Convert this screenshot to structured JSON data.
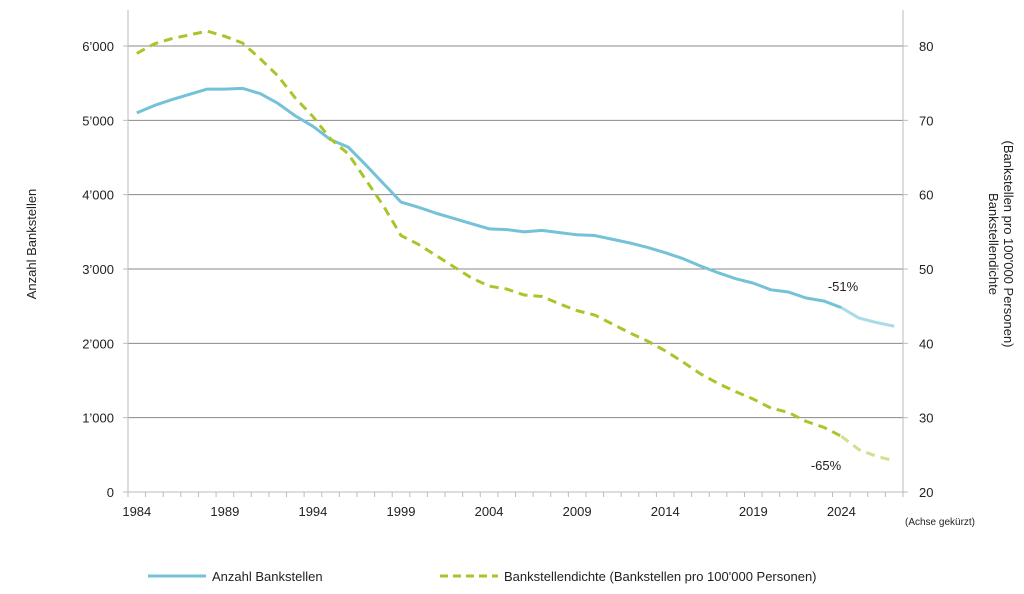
{
  "chart_data": {
    "type": "line",
    "title": "",
    "xlabel": "",
    "ylabel": "Anzahl Bankstellen",
    "y2label_line1": "Bankstellendichte",
    "y2label_line2": "(Bankstellen pro 100'000 Personen)",
    "axis_note": "(Achse gekürzt)",
    "x": [
      1984,
      1985,
      1986,
      1987,
      1988,
      1989,
      1990,
      1991,
      1992,
      1993,
      1994,
      1995,
      1996,
      1997,
      1998,
      1999,
      2000,
      2001,
      2002,
      2003,
      2004,
      2005,
      2006,
      2007,
      2008,
      2009,
      2010,
      2011,
      2012,
      2013,
      2014,
      2015,
      2016,
      2017,
      2018,
      2019,
      2020,
      2021,
      2022,
      2023,
      2024,
      2025,
      2026,
      2027
    ],
    "x_tick_labels": [
      "1984",
      "1989",
      "1994",
      "1999",
      "2004",
      "2009",
      "2014",
      "2019",
      "2024"
    ],
    "y_ticks": [
      "0",
      "1’000",
      "2’000",
      "3’000",
      "4’000",
      "5’000",
      "6’000"
    ],
    "y2_ticks": [
      "20",
      "30",
      "40",
      "50",
      "60",
      "70",
      "80"
    ],
    "ylim": [
      0,
      6000
    ],
    "y2lim": [
      20,
      80
    ],
    "grid": true,
    "legend_position": "bottom",
    "projection_from": 2024,
    "series": [
      {
        "name": "Anzahl Bankstellen",
        "axis": "left",
        "color": "#74c2d8",
        "projection_color": "#a9dbe8",
        "style": "solid",
        "values": [
          5100,
          5200,
          5280,
          5350,
          5420,
          5420,
          5430,
          5360,
          5230,
          5060,
          4920,
          4740,
          4640,
          4400,
          4150,
          3900,
          3830,
          3750,
          3680,
          3610,
          3540,
          3530,
          3500,
          3520,
          3490,
          3460,
          3450,
          3400,
          3350,
          3290,
          3220,
          3140,
          3040,
          2950,
          2870,
          2810,
          2720,
          2690,
          2610,
          2570,
          2480,
          2340,
          2280,
          2230
        ]
      },
      {
        "name": "Bankstellendichte (Bankstellen pro 100'000 Personen)",
        "axis": "right",
        "color": "#a8c62a",
        "projection_color": "#d0e08e",
        "style": "dashed",
        "values": [
          79,
          80.3,
          81,
          81.5,
          82,
          81.3,
          80.4,
          78.3,
          76,
          73,
          70.5,
          67.5,
          65.5,
          62,
          58.5,
          54.5,
          53.3,
          51.8,
          50.3,
          48.8,
          47.7,
          47.3,
          46.5,
          46.3,
          45.3,
          44.4,
          43.8,
          42.6,
          41.4,
          40.3,
          39,
          37.5,
          35.9,
          34.6,
          33.5,
          32.5,
          31.3,
          30.7,
          29.5,
          28.7,
          27.5,
          25.7,
          24.8,
          24.2
        ]
      }
    ],
    "annotations": [
      "-51%",
      "-65%"
    ]
  }
}
